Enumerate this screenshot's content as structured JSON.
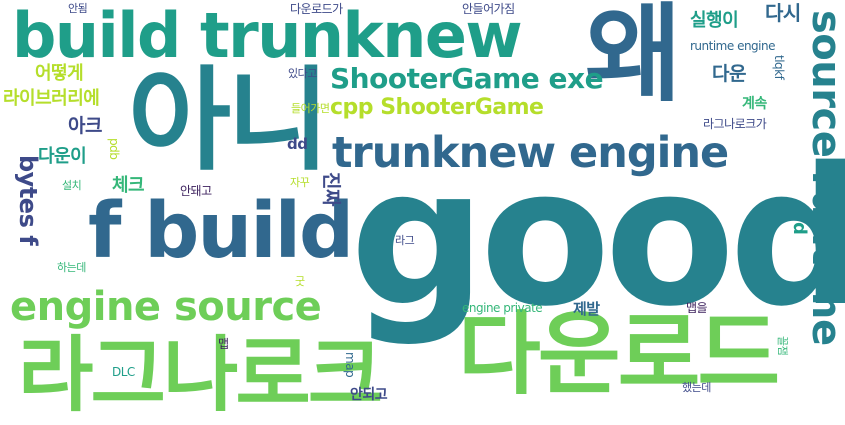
{
  "palette": {
    "background": "#ffffff",
    "purple": "#3b1f5c",
    "indigo": "#3e4a89",
    "blue": "#31688e",
    "teal_blue": "#26828e",
    "teal": "#1f9e89",
    "green": "#35b779",
    "light_green": "#6ece58",
    "lime": "#b5de2b"
  },
  "words": {
    "good": "good",
    "ahni": "아니",
    "wae": "왜",
    "build_trunknew": "build trunknew",
    "f_build": "f build",
    "laganaroke_big": "라그나로크",
    "download_big": "다운로드",
    "source_runtime": "source runtime",
    "engine_source": "engine source",
    "trunknew_engine": "trunknew engine",
    "shootergame_exe": "ShooterGame exe",
    "cpp_shootergame": "cpp ShooterGame",
    "bytes_f": "bytes f",
    "library": "라이브러리에",
    "eotteoke": "어떻게",
    "arc": "아크",
    "down_i": "다운이",
    "check": "체크",
    "jinjja": "진짜",
    "silhaengi": "실행이",
    "dasi": "다시",
    "down": "다운",
    "runtime_engine": "runtime engine",
    "gyesok": "계속",
    "laganaroke_small": "라그나로크가",
    "download_ga": "다운로드가",
    "deuleogajim": "안들어가짐",
    "antim": "안됨",
    "itdago": "있다고",
    "deuleogamyeon": "들어가면",
    "dd": "dd",
    "d": "d",
    "tlqkf": "tlqkf",
    "pdb": "pdb",
    "install": "설치",
    "andoego": "안돼고",
    "jakku": "자꾸",
    "lag": "라그",
    "haneunde": "하는데",
    "gut": "굿",
    "engine_private": "engine private",
    "jebal": "제발",
    "map_eul": "맵을",
    "map_kr": "맵",
    "map_en": "map",
    "dlc": "DLC",
    "andoego2": "안되고",
    "haetneunde": "했는데",
    "kkoljaeng": "꼴잼"
  }
}
